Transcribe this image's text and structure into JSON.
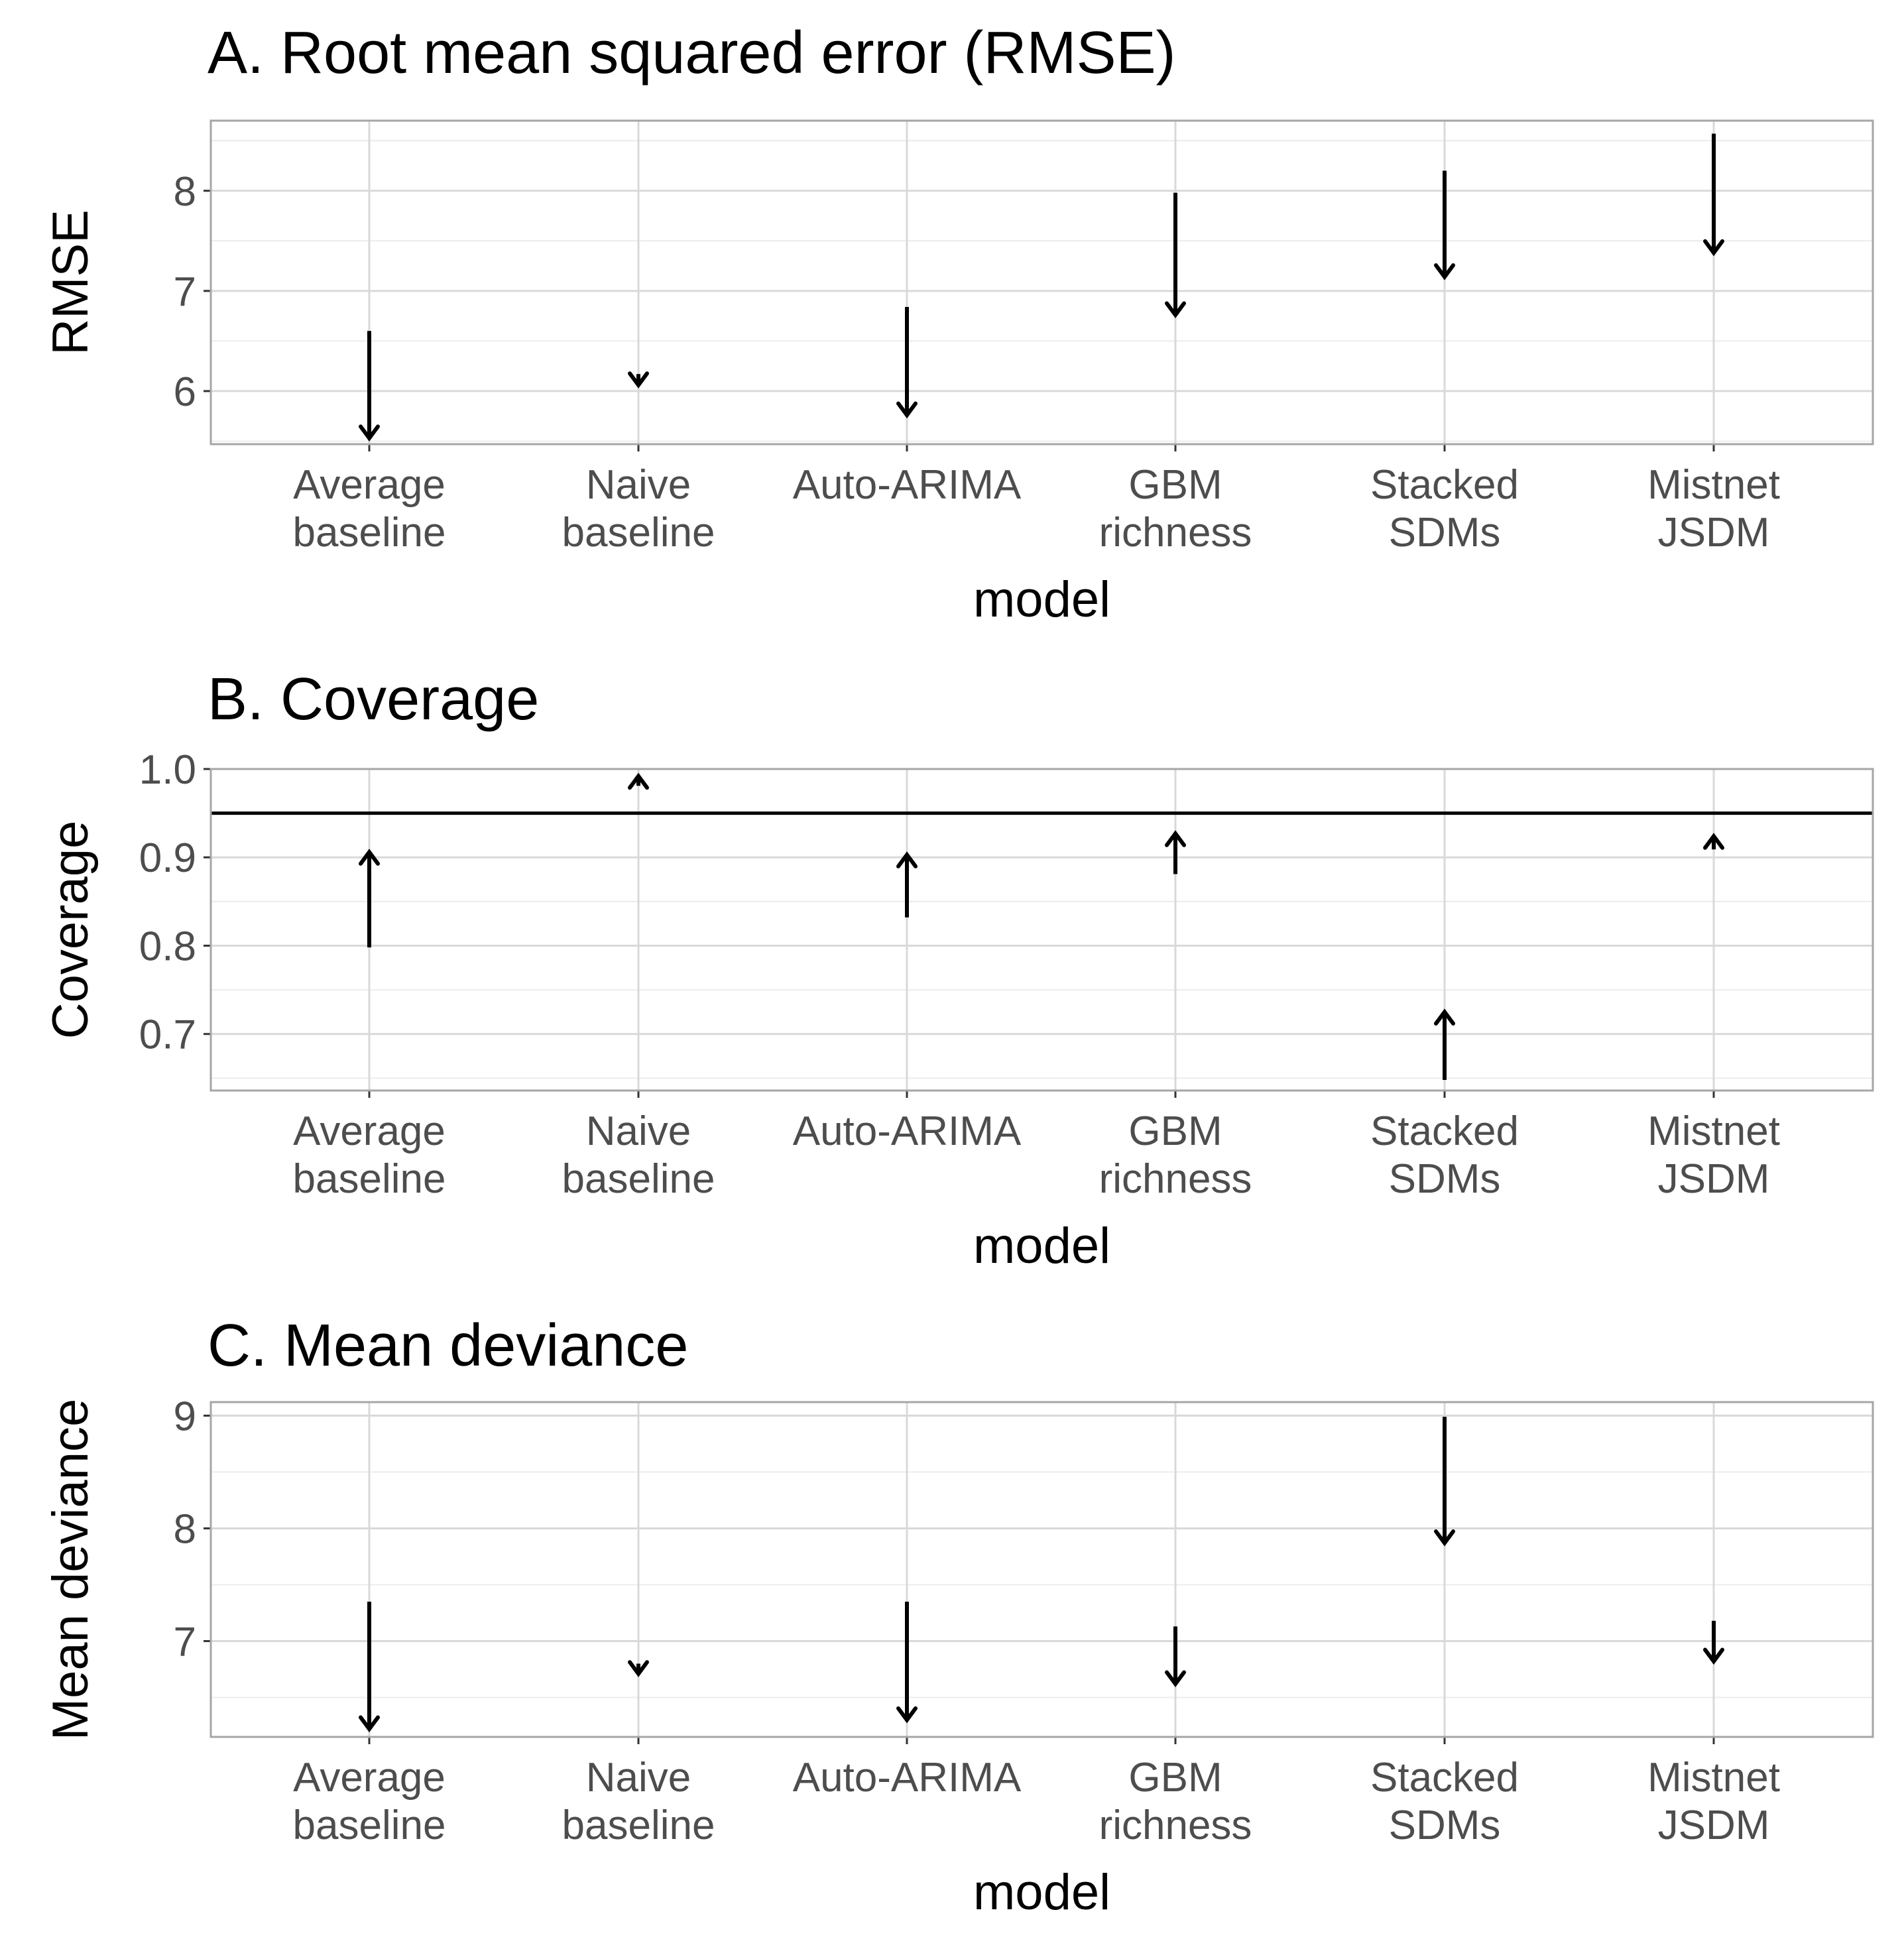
{
  "chart_data": [
    {
      "type": "arrow",
      "title": "A. Root mean squared error (RMSE)",
      "xlabel": "model",
      "ylabel": "RMSE",
      "categories": [
        [
          "Average",
          "baseline"
        ],
        [
          "Naive",
          "baseline"
        ],
        [
          "Auto-ARIMA"
        ],
        [
          "GBM",
          "richness"
        ],
        [
          "Stacked",
          "SDMs"
        ],
        [
          "Mistnet",
          "JSDM"
        ]
      ],
      "yticks": [
        6,
        7,
        8
      ],
      "ytick_labels": [
        "6",
        "7",
        "8"
      ],
      "ylim": [
        5.47,
        8.7
      ],
      "arrows": [
        {
          "from": 6.6,
          "to": 5.53
        },
        {
          "from": 6.17,
          "to": 6.06
        },
        {
          "from": 6.84,
          "to": 5.76
        },
        {
          "from": 7.98,
          "to": 6.76
        },
        {
          "from": 8.2,
          "to": 7.14
        },
        {
          "from": 8.57,
          "to": 7.38
        }
      ],
      "reference_line": null,
      "grid": true
    },
    {
      "type": "arrow",
      "title": "B. Coverage",
      "xlabel": "model",
      "ylabel": "Coverage",
      "categories": [
        [
          "Average",
          "baseline"
        ],
        [
          "Naive",
          "baseline"
        ],
        [
          "Auto-ARIMA"
        ],
        [
          "GBM",
          "richness"
        ],
        [
          "Stacked",
          "SDMs"
        ],
        [
          "Mistnet",
          "JSDM"
        ]
      ],
      "yticks": [
        0.7,
        0.8,
        0.9,
        1.0
      ],
      "ytick_labels": [
        "0.7",
        "0.8",
        "0.9",
        "1.0"
      ],
      "ylim": [
        0.636,
        1.0
      ],
      "arrows": [
        {
          "from": 0.798,
          "to": 0.906
        },
        {
          "from": 0.981,
          "to": 0.992
        },
        {
          "from": 0.832,
          "to": 0.903
        },
        {
          "from": 0.881,
          "to": 0.927
        },
        {
          "from": 0.648,
          "to": 0.725
        },
        {
          "from": 0.909,
          "to": 0.924
        }
      ],
      "reference_line": 0.95,
      "grid": true
    },
    {
      "type": "arrow",
      "title": "C. Mean deviance",
      "xlabel": "model",
      "ylabel": "Mean deviance",
      "categories": [
        [
          "Average",
          "baseline"
        ],
        [
          "Naive",
          "baseline"
        ],
        [
          "Auto-ARIMA"
        ],
        [
          "GBM",
          "richness"
        ],
        [
          "Stacked",
          "SDMs"
        ],
        [
          "Mistnet",
          "JSDM"
        ]
      ],
      "yticks": [
        7,
        8,
        9
      ],
      "ytick_labels": [
        "7",
        "8",
        "9"
      ],
      "ylim": [
        6.15,
        9.12
      ],
      "arrows": [
        {
          "from": 7.35,
          "to": 6.22
        },
        {
          "from": 6.8,
          "to": 6.71
        },
        {
          "from": 7.35,
          "to": 6.3
        },
        {
          "from": 7.13,
          "to": 6.62
        },
        {
          "from": 8.99,
          "to": 7.87
        },
        {
          "from": 7.18,
          "to": 6.82
        }
      ],
      "reference_line": null,
      "grid": true
    }
  ]
}
